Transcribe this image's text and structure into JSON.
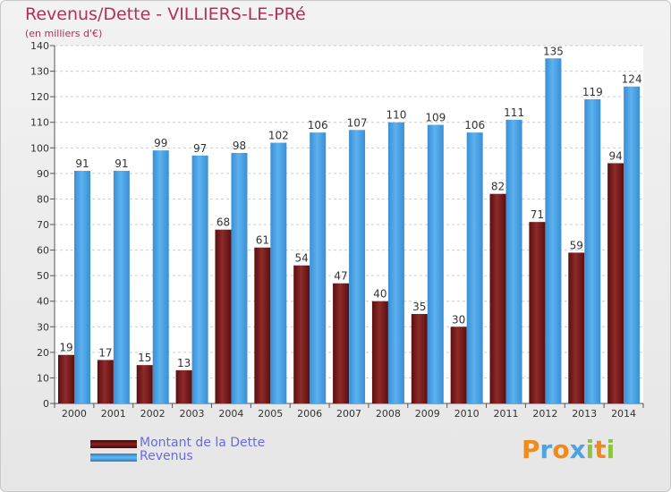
{
  "chart_data": {
    "type": "bar",
    "title": "Revenus/Dette - VILLIERS-LE-PRé",
    "subtitle": "(en milliers d'€)",
    "categories": [
      "2000",
      "2001",
      "2002",
      "2003",
      "2004",
      "2005",
      "2006",
      "2007",
      "2008",
      "2009",
      "2010",
      "2011",
      "2012",
      "2013",
      "2014"
    ],
    "series": [
      {
        "name": "Montant de la Dette",
        "color": "#7a1c1c",
        "values": [
          19,
          17,
          15,
          13,
          68,
          61,
          54,
          47,
          40,
          35,
          30,
          82,
          71,
          59,
          94
        ]
      },
      {
        "name": "Revenus",
        "color": "#4da6e8",
        "values": [
          91,
          91,
          99,
          97,
          98,
          102,
          106,
          107,
          110,
          109,
          106,
          111,
          135,
          119,
          124
        ]
      }
    ],
    "ylim": [
      0,
      140
    ],
    "yticks": [
      0,
      10,
      20,
      30,
      40,
      50,
      60,
      70,
      80,
      90,
      100,
      110,
      120,
      130,
      140
    ],
    "grid": true,
    "legend": "bottom-left"
  },
  "logo": {
    "text": "Proxiti",
    "letters": [
      "P",
      "r",
      "o",
      "x",
      "i",
      "t",
      "i"
    ],
    "colors": [
      "#f08a1c",
      "#4fa3e0",
      "#f08a1c",
      "#4fa3e0",
      "#8cc63f",
      "#f08a1c",
      "#8cc63f"
    ]
  }
}
